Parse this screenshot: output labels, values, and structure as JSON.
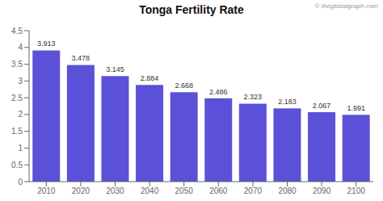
{
  "chart_data": {
    "type": "bar",
    "title": "Tonga Fertility Rate",
    "categories": [
      "2010",
      "2020",
      "2030",
      "2040",
      "2050",
      "2060",
      "2070",
      "2080",
      "2090",
      "2100"
    ],
    "values": [
      3.913,
      3.478,
      3.145,
      2.884,
      2.668,
      2.486,
      2.323,
      2.183,
      2.067,
      1.991
    ],
    "color": "#5b51d8",
    "ylim": [
      0,
      4.5
    ],
    "yticks": [
      0,
      0.5,
      1.0,
      1.5,
      2.0,
      2.5,
      3.0,
      3.5,
      4.0,
      4.5
    ],
    "grid": false,
    "data_labels": true,
    "annotations": [
      "© theglobalgraph.com"
    ]
  }
}
